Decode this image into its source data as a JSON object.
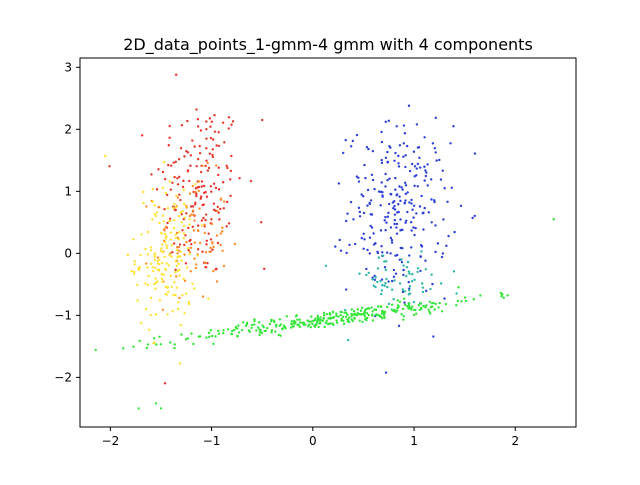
{
  "chart_data": {
    "type": "scatter",
    "title": "2D_data_points_1-gmm-4 gmm with 4 components",
    "xlabel": "",
    "ylabel": "",
    "xlim": [
      -2.3,
      2.6
    ],
    "ylim": [
      -2.8,
      3.15
    ],
    "xticks": [
      -2,
      -1,
      0,
      1,
      2
    ],
    "xtick_labels": [
      "−2",
      "−1",
      "0",
      "1",
      "2"
    ],
    "yticks": [
      -2,
      -1,
      0,
      1,
      2,
      3
    ],
    "ytick_labels": [
      "−2",
      "−1",
      "0",
      "1",
      "2",
      "3"
    ],
    "grid": false,
    "legend": "none",
    "clusters": [
      {
        "color": "#e8352b",
        "center": [
          -1.12,
          1.05
        ],
        "std": [
          0.22,
          0.75
        ],
        "count": 180,
        "corr": 0
      },
      {
        "color": "#ff8c2a",
        "center": [
          -1.2,
          0.25
        ],
        "std": [
          0.18,
          0.5
        ],
        "count": 80,
        "corr": 0
      },
      {
        "color": "#ffe234",
        "center": [
          -1.45,
          -0.05
        ],
        "std": [
          0.15,
          0.6
        ],
        "count": 170,
        "corr": 0
      },
      {
        "color": "#2b3fd6",
        "center": [
          0.85,
          0.7
        ],
        "std": [
          0.25,
          0.68
        ],
        "count": 260,
        "corr": 0
      },
      {
        "color": "#2bb6a7",
        "center": [
          0.85,
          -0.45
        ],
        "std": [
          0.3,
          0.22
        ],
        "count": 60,
        "corr": 0
      },
      {
        "color": "#35e63a",
        "center": [
          0.2,
          -1.05
        ],
        "std": [
          0.75,
          0.18
        ],
        "count": 330,
        "corr": 0.93
      }
    ],
    "extra_points": [
      {
        "x": -2.05,
        "y": 1.57,
        "color": "#ffe234"
      },
      {
        "x": 2.38,
        "y": 0.55,
        "color": "#35e63a"
      },
      {
        "x": -1.72,
        "y": -2.5,
        "color": "#35e63a"
      },
      {
        "x": -1.55,
        "y": -2.42,
        "color": "#35e63a"
      },
      {
        "x": -1.5,
        "y": -2.5,
        "color": "#35e63a"
      },
      {
        "x": -0.5,
        "y": 2.15,
        "color": "#e8352b"
      },
      {
        "x": -0.48,
        "y": -0.25,
        "color": "#e8352b"
      },
      {
        "x": -1.35,
        "y": 2.88,
        "color": "#e8352b"
      },
      {
        "x": 0.3,
        "y": 1.62,
        "color": "#2b3fd6"
      },
      {
        "x": 0.95,
        "y": 2.38,
        "color": "#2b3fd6"
      },
      {
        "x": 0.35,
        "y": -1.4,
        "color": "#2bb6a7"
      }
    ]
  }
}
